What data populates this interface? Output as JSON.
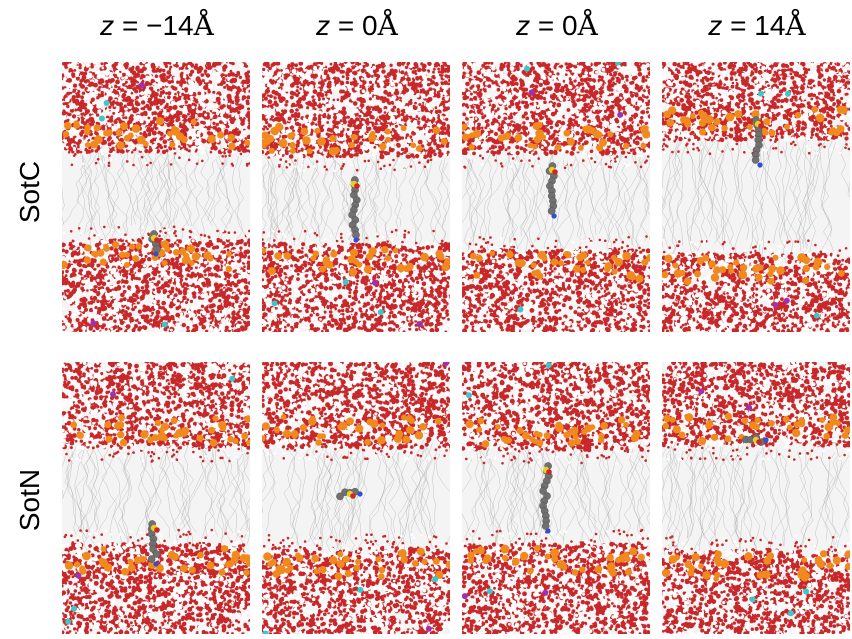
{
  "columns": [
    {
      "var": "z",
      "eq": " = ",
      "value": "−14",
      "unit": "Å"
    },
    {
      "var": "z",
      "eq": " = ",
      "value": "0",
      "unit": "Å"
    },
    {
      "var": "z",
      "eq": " = ",
      "value": "0",
      "unit": "Å"
    },
    {
      "var": "z",
      "eq": " = ",
      "value": "14",
      "unit": "Å"
    }
  ],
  "rows": [
    {
      "label": "SotC"
    },
    {
      "label": "SotN"
    }
  ],
  "colors": {
    "water_red": "#c8282a",
    "water_white": "#ffffff",
    "phosphate_orange": "#f08a1e",
    "lipid_tail_gray": "#9a9a9a",
    "membrane_bg": "#f4f4f4",
    "ion_cyan": "#3cc8c8",
    "ion_purple": "#a030b0",
    "drug_gray": "#707070",
    "drug_yellow": "#e8d020",
    "drug_blue": "#3050d0"
  }
}
